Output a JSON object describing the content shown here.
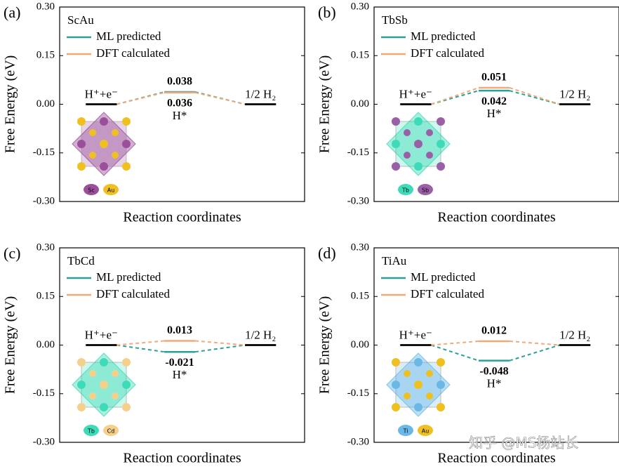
{
  "chart_data": [
    {
      "type": "line",
      "panel": "(a)",
      "title": "ScAu",
      "ylabel": "Free Energy (eV)",
      "xlabel": "Reaction coordinates",
      "categories": [
        "H⁺+e⁻",
        "H*",
        "1/2 H₂"
      ],
      "series": [
        {
          "name": "ML predicted",
          "color": "#2aa198",
          "values": [
            0,
            0.038,
            0
          ]
        },
        {
          "name": "DFT calculated",
          "color": "#f2a97a",
          "values": [
            0,
            0.036,
            0
          ]
        }
      ],
      "endpoint_color": "#000000",
      "ylim": [
        -0.3,
        0.3
      ],
      "yticks": [
        {
          "value": -0.3,
          "label": "-0.30"
        },
        {
          "value": -0.15,
          "label": "-0.15"
        },
        {
          "value": 0,
          "label": "0.00"
        },
        {
          "value": 0.15,
          "label": "0.15"
        },
        {
          "value": 0.3,
          "label": "0.30"
        }
      ],
      "atoms": [
        {
          "name": "Sc",
          "color": "#9b4f9b"
        },
        {
          "name": "Au",
          "color": "#f0c020"
        }
      ]
    },
    {
      "type": "line",
      "panel": "(b)",
      "title": "TbSb",
      "ylabel": "Free Energy (eV)",
      "xlabel": "Reaction coordinates",
      "categories": [
        "H⁺+e⁻",
        "H*",
        "1/2 H₂"
      ],
      "series": [
        {
          "name": "ML predicted",
          "color": "#2aa198",
          "values": [
            0,
            0.042,
            0
          ]
        },
        {
          "name": "DFT calculated",
          "color": "#f2a97a",
          "values": [
            0,
            0.051,
            0
          ]
        }
      ],
      "endpoint_color": "#000000",
      "ylim": [
        -0.3,
        0.3
      ],
      "yticks": [
        {
          "value": -0.3,
          "label": "-0.30"
        },
        {
          "value": -0.15,
          "label": "-0.15"
        },
        {
          "value": 0,
          "label": "0.00"
        },
        {
          "value": 0.15,
          "label": "0.15"
        },
        {
          "value": 0.3,
          "label": "0.30"
        }
      ],
      "atoms": [
        {
          "name": "Tb",
          "color": "#3ddbb8"
        },
        {
          "name": "Sb",
          "color": "#9b5fa8"
        }
      ]
    },
    {
      "type": "line",
      "panel": "(c)",
      "title": "TbCd",
      "ylabel": "Free Energy (eV)",
      "xlabel": "Reaction coordinates",
      "categories": [
        "H⁺+e⁻",
        "H*",
        "1/2 H₂"
      ],
      "series": [
        {
          "name": "ML predicted",
          "color": "#2aa198",
          "values": [
            0,
            -0.021,
            0
          ]
        },
        {
          "name": "DFT calculated",
          "color": "#f2a97a",
          "values": [
            0,
            0.013,
            0
          ]
        }
      ],
      "endpoint_color": "#000000",
      "ylim": [
        -0.3,
        0.3
      ],
      "yticks": [
        {
          "value": -0.3,
          "label": "-0.30"
        },
        {
          "value": -0.15,
          "label": "-0.15"
        },
        {
          "value": 0,
          "label": "0.00"
        },
        {
          "value": 0.15,
          "label": "0.15"
        },
        {
          "value": 0.3,
          "label": "0.30"
        }
      ],
      "atoms": [
        {
          "name": "Tb",
          "color": "#3ddbb8"
        },
        {
          "name": "Cd",
          "color": "#f5d08a"
        }
      ]
    },
    {
      "type": "line",
      "panel": "(d)",
      "title": "TiAu",
      "ylabel": "Free Energy (eV)",
      "xlabel": "Reaction coordinates",
      "categories": [
        "H⁺+e⁻",
        "H*",
        "1/2 H₂"
      ],
      "series": [
        {
          "name": "ML predicted",
          "color": "#2aa198",
          "values": [
            0,
            -0.048,
            0
          ]
        },
        {
          "name": "DFT calculated",
          "color": "#f2a97a",
          "values": [
            0,
            0.012,
            0
          ]
        }
      ],
      "endpoint_color": "#000000",
      "ylim": [
        -0.3,
        0.3
      ],
      "yticks": [
        {
          "value": -0.3,
          "label": "-0.30"
        },
        {
          "value": -0.15,
          "label": "-0.15"
        },
        {
          "value": 0,
          "label": "0.00"
        },
        {
          "value": 0.15,
          "label": "0.15"
        },
        {
          "value": 0.3,
          "label": "0.30"
        }
      ],
      "atoms": [
        {
          "name": "Ti",
          "color": "#6ab8e8"
        },
        {
          "name": "Au",
          "color": "#f0c020"
        }
      ]
    }
  ],
  "watermark": "知乎 @MS杨站长"
}
